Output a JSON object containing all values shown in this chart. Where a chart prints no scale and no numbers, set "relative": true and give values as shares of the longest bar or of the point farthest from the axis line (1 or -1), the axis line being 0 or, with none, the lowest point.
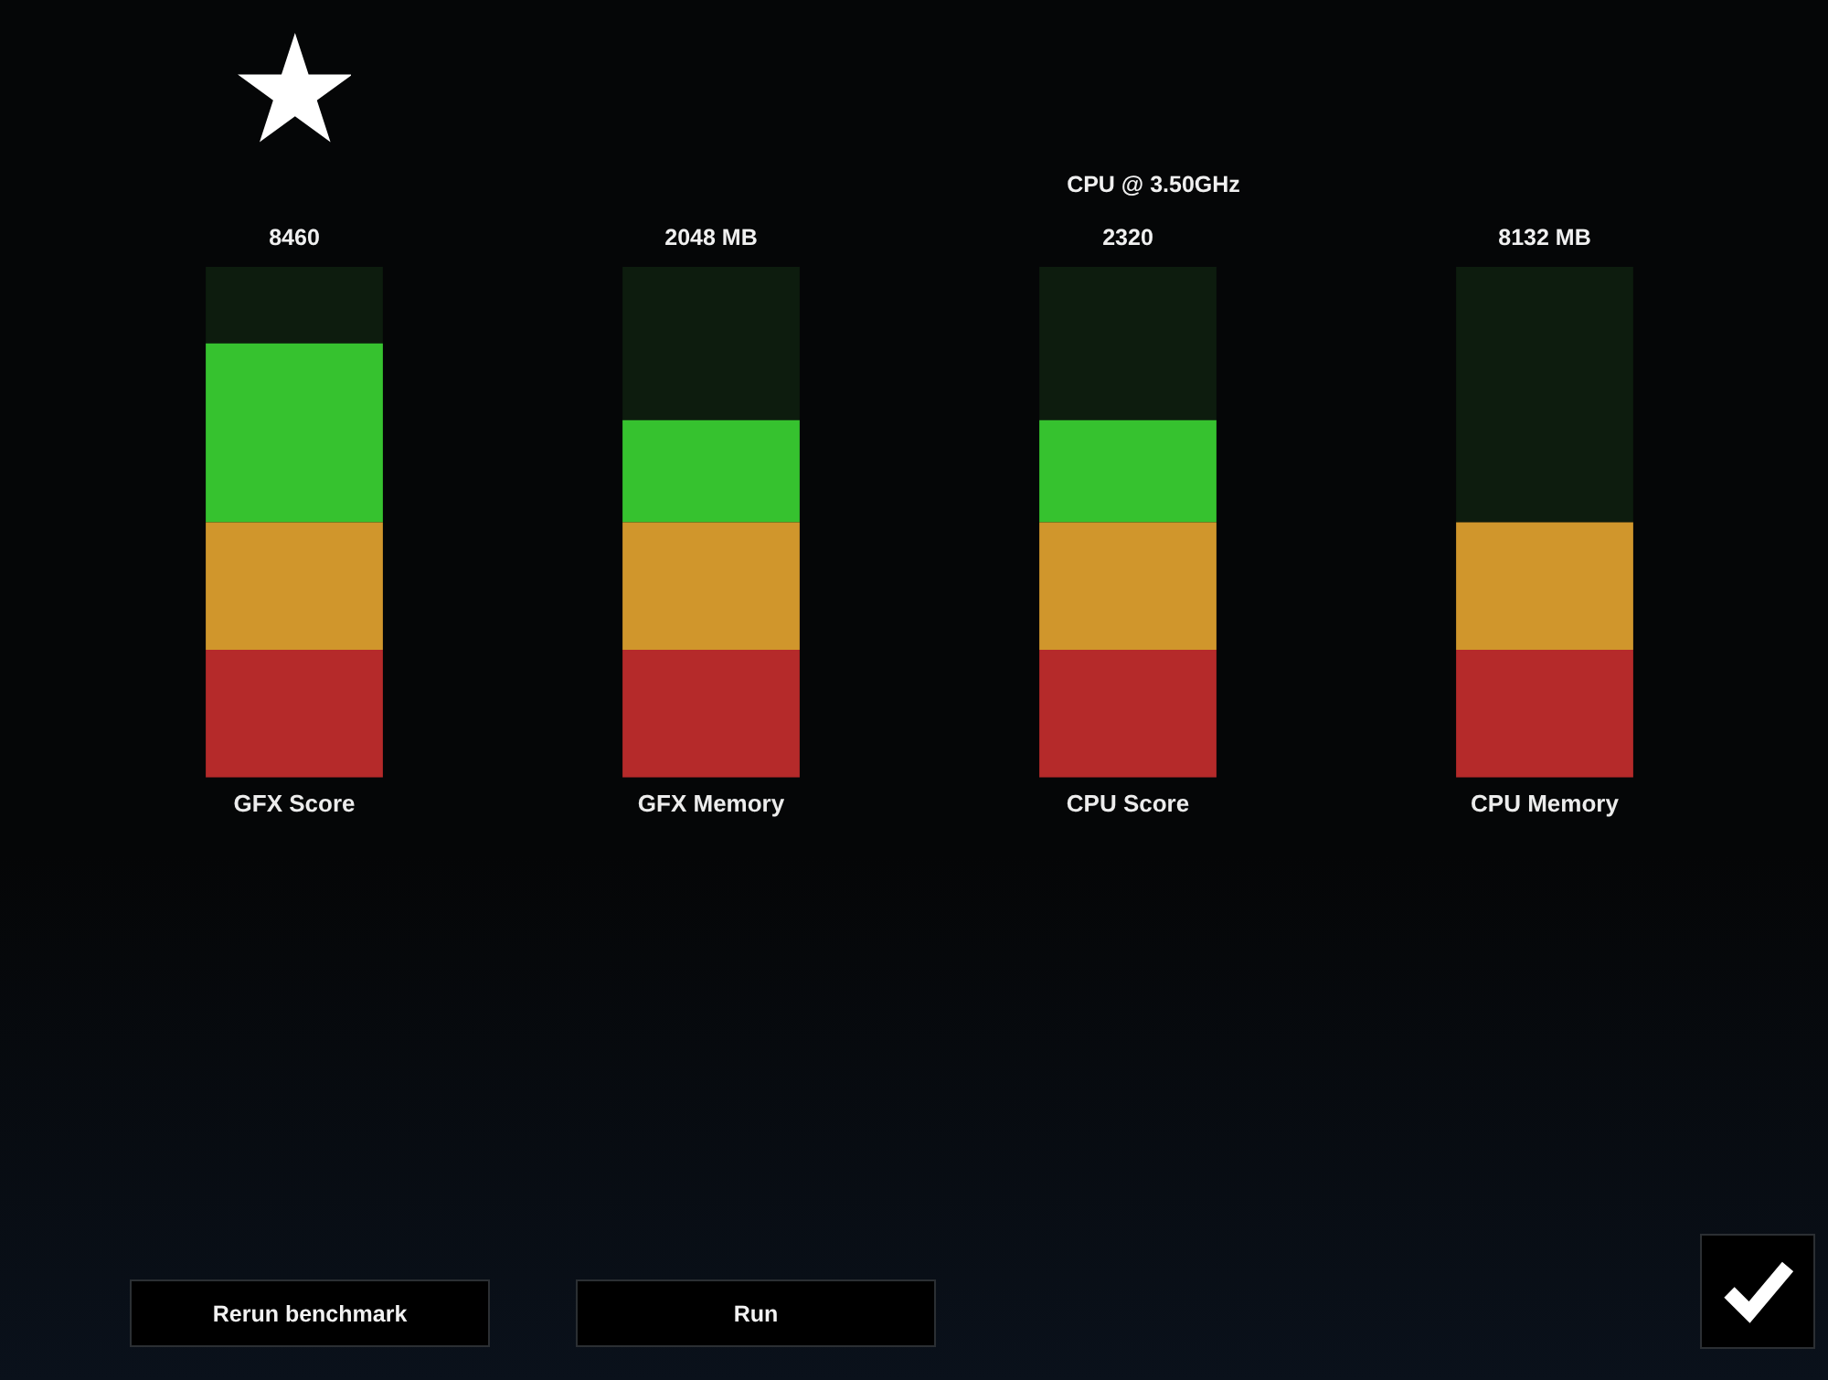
{
  "chart_data": {
    "type": "bar",
    "stacked": true,
    "relative": true,
    "subtitle": "CPU @ 3.50GHz",
    "categories": [
      "GFX Score",
      "GFX Memory",
      "CPU Score",
      "CPU Memory"
    ],
    "series": [
      {
        "color": "#b52a2a",
        "values": [
          0.25,
          0.25,
          0.25,
          0.25
        ]
      },
      {
        "color": "#d0962c",
        "values": [
          0.25,
          0.25,
          0.25,
          0.25
        ]
      },
      {
        "color": "#36c22f",
        "values": [
          0.35,
          0.2,
          0.2,
          null
        ]
      },
      {
        "color": "#0d1c0e",
        "values": [
          0.15,
          0.3,
          0.3,
          0.5
        ]
      }
    ],
    "annotations": [
      {
        "text": "8460",
        "x": "GFX Score",
        "y": 1
      },
      {
        "text": "2048 MB",
        "x": "GFX Memory",
        "y": 1
      },
      {
        "text": "2320",
        "x": "CPU Score",
        "y": 1
      },
      {
        "text": "8132 MB",
        "x": "CPU Memory",
        "y": 1
      },
      "Rerun benchmark",
      "Run"
    ]
  }
}
